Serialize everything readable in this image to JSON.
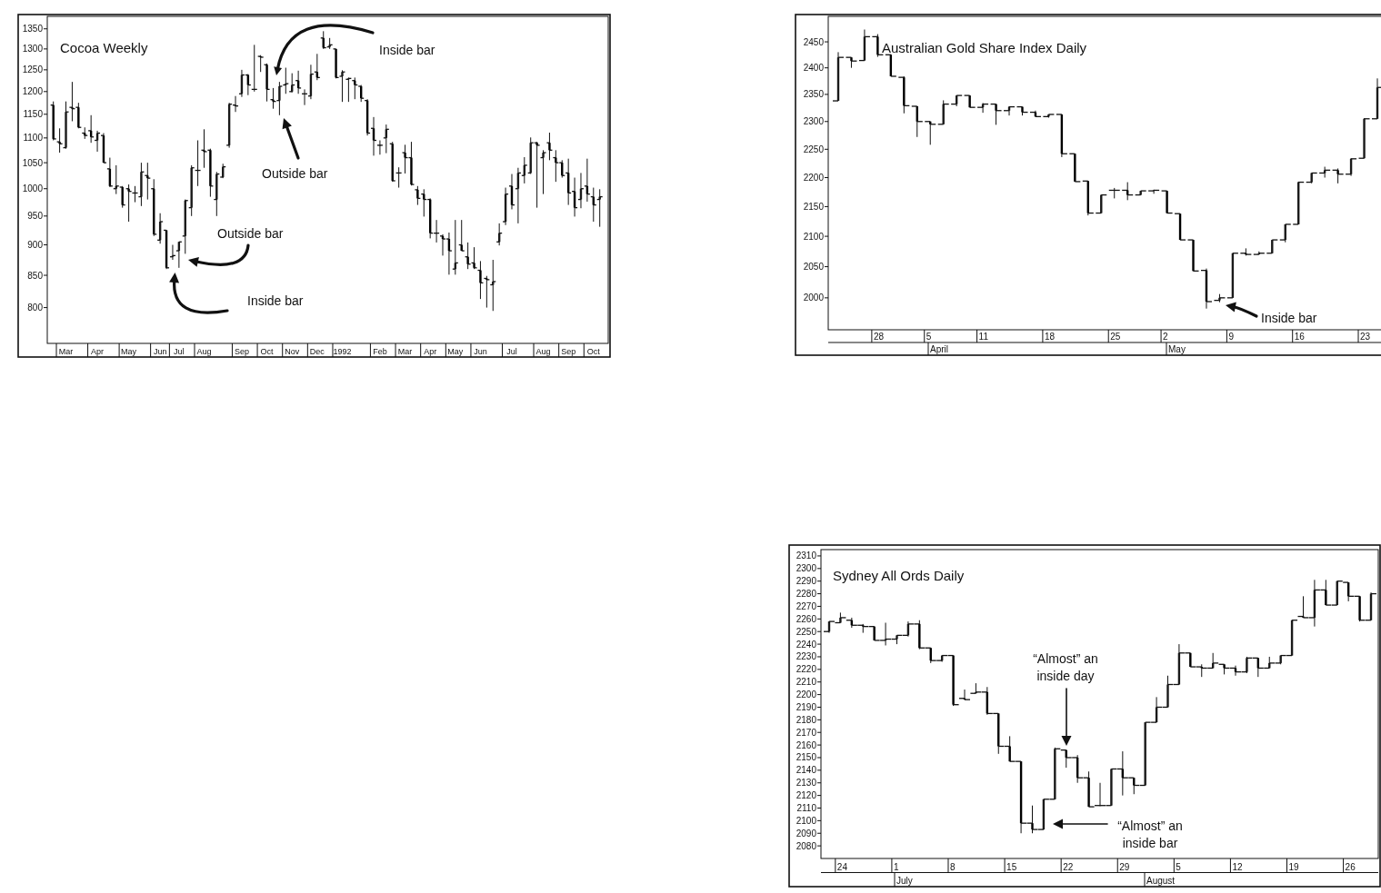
{
  "chart_data": [
    {
      "type": "candlestick",
      "title": "Cocoa Weekly",
      "log": true,
      "ylim": [
        748,
        1382
      ],
      "yticks": [
        800,
        850,
        900,
        950,
        1000,
        1050,
        1100,
        1150,
        1200,
        1250,
        1300,
        1350
      ],
      "categories": [
        null,
        null,
        "Mar",
        null,
        null,
        null,
        null,
        "Apr",
        null,
        null,
        null,
        null,
        "May",
        null,
        null,
        null,
        null,
        "Jun",
        null,
        null,
        "Jul",
        null,
        null,
        null,
        "Aug",
        null,
        null,
        null,
        null,
        null,
        "Sep",
        null,
        null,
        null,
        "Oct",
        null,
        null,
        null,
        "Nov",
        null,
        null,
        null,
        "Dec",
        null,
        null,
        null,
        "1992",
        null,
        null,
        null,
        null,
        null,
        "Feb",
        null,
        null,
        null,
        "Mar",
        null,
        null,
        null,
        "Apr",
        null,
        null,
        null,
        "May",
        null,
        null,
        null,
        "Jun",
        null,
        null,
        null,
        null,
        "Jul",
        null,
        null,
        null,
        null,
        "Aug",
        null,
        null,
        null,
        "Sep",
        null,
        null,
        null,
        "Oct",
        null
      ],
      "ohlc": [
        [
          1170,
          1178,
          1095,
          1098
        ],
        [
          1092,
          1120,
          1070,
          1088
        ],
        [
          1080,
          1178,
          1078,
          1155
        ],
        [
          1165,
          1222,
          1135,
          1162
        ],
        [
          1165,
          1175,
          1120,
          1122
        ],
        [
          1110,
          1122,
          1098,
          1105
        ],
        [
          1115,
          1148,
          1090,
          1102
        ],
        [
          1095,
          1115,
          1072,
          1110
        ],
        [
          1105,
          1110,
          1050,
          1050
        ],
        [
          1038,
          1060,
          1003,
          1005
        ],
        [
          1000,
          1045,
          990,
          1005
        ],
        [
          1003,
          1005,
          965,
          970
        ],
        [
          1000,
          1008,
          940,
          995
        ],
        [
          992,
          1005,
          975,
          992
        ],
        [
          985,
          1050,
          968,
          1032
        ],
        [
          1025,
          1050,
          980,
          1020
        ],
        [
          1000,
          1018,
          915,
          918
        ],
        [
          908,
          955,
          902,
          940
        ],
        [
          925,
          925,
          860,
          862
        ],
        [
          880,
          900,
          875,
          882
        ],
        [
          890,
          905,
          862,
          905
        ],
        [
          915,
          980,
          885,
          978
        ],
        [
          965,
          1045,
          950,
          1040
        ],
        [
          1035,
          1095,
          1005,
          1035
        ],
        [
          1075,
          1118,
          1040,
          1072
        ],
        [
          1075,
          1078,
          985,
          1005
        ],
        [
          980,
          1032,
          950,
          1028
        ],
        [
          1022,
          1048,
          1020,
          1042
        ],
        [
          1085,
          1175,
          1080,
          1172
        ],
        [
          1170,
          1190,
          1155,
          1168
        ],
        [
          1195,
          1250,
          1188,
          1238
        ],
        [
          1238,
          1240,
          1192,
          1215
        ],
        [
          1205,
          1310,
          1200,
          1205
        ],
        [
          1282,
          1285,
          1245,
          1280
        ],
        [
          1262,
          1265,
          1178,
          1205
        ],
        [
          1182,
          1208,
          1162,
          1178
        ],
        [
          1180,
          1222,
          1148,
          1212
        ],
        [
          1215,
          1255,
          1195,
          1218
        ],
        [
          1200,
          1242,
          1198,
          1215
        ],
        [
          1225,
          1248,
          1195,
          1208
        ],
        [
          1195,
          1205,
          1170,
          1195
        ],
        [
          1190,
          1262,
          1183,
          1240
        ],
        [
          1245,
          1288,
          1226,
          1232
        ],
        [
          1327,
          1344,
          1300,
          1303
        ],
        [
          1305,
          1327,
          1300,
          1310
        ],
        [
          1300,
          1300,
          1230,
          1232
        ],
        [
          1235,
          1249,
          1177,
          1245
        ],
        [
          1228,
          1232,
          1177,
          1230
        ],
        [
          1225,
          1232,
          1183,
          1215
        ],
        [
          1212,
          1215,
          1177,
          1185
        ],
        [
          1180,
          1183,
          1105,
          1110
        ],
        [
          1120,
          1144,
          1064,
          1095
        ],
        [
          1085,
          1095,
          1066,
          1085
        ],
        [
          1100,
          1128,
          1069,
          1118
        ],
        [
          1088,
          1092,
          1013,
          1015
        ],
        [
          1030,
          1041,
          1002,
          1030
        ],
        [
          1070,
          1086,
          1029,
          1060
        ],
        [
          1060,
          1092,
          1006,
          1008
        ],
        [
          998,
          1005,
          970,
          982
        ],
        [
          990,
          999,
          949,
          980
        ],
        [
          980,
          982,
          911,
          920
        ],
        [
          920,
          943,
          904,
          920
        ],
        [
          915,
          918,
          882,
          910
        ],
        [
          910,
          921,
          851,
          890
        ],
        [
          860,
          943,
          851,
          870
        ],
        [
          900,
          943,
          890,
          890
        ],
        [
          880,
          904,
          860,
          868
        ],
        [
          870,
          896,
          860,
          862
        ],
        [
          858,
          873,
          813,
          838
        ],
        [
          845,
          849,
          800,
          843
        ],
        [
          835,
          875,
          795,
          840
        ],
        [
          905,
          937,
          899,
          920
        ],
        [
          940,
          1002,
          934,
          990
        ],
        [
          1005,
          1028,
          962,
          970
        ],
        [
          1000,
          1040,
          937,
          1030
        ],
        [
          1025,
          1061,
          1010,
          1045
        ],
        [
          1030,
          1101,
          1028,
          1090
        ],
        [
          1090,
          1092,
          965,
          1085
        ],
        [
          1060,
          1075,
          990,
          1070
        ],
        [
          1090,
          1111,
          1055,
          1075
        ],
        [
          1060,
          1075,
          1013,
          1050
        ],
        [
          1050,
          1055,
          1021,
          1025
        ],
        [
          1030,
          1058,
          970,
          992
        ],
        [
          995,
          1021,
          949,
          965
        ],
        [
          980,
          1030,
          964,
          1000
        ],
        [
          1005,
          1058,
          976,
          990
        ],
        [
          985,
          1002,
          940,
          970
        ],
        [
          980,
          999,
          931,
          985
        ]
      ],
      "annotations": [
        "Inside bar",
        "Outside bar",
        "Outside bar",
        "Inside bar"
      ]
    },
    {
      "type": "candlestick",
      "title": "Australian Gold Share Index Daily",
      "log": true,
      "ylim": [
        1950,
        2500
      ],
      "yticks": [
        2000,
        2050,
        2100,
        2150,
        2200,
        2250,
        2300,
        2350,
        2400,
        2450
      ],
      "categories": [
        null,
        null,
        null,
        "28",
        null,
        null,
        null,
        "5",
        null,
        null,
        null,
        "11",
        null,
        null,
        null,
        null,
        "18",
        null,
        null,
        null,
        null,
        "25",
        null,
        null,
        null,
        "2",
        null,
        null,
        null,
        null,
        "9",
        null,
        null,
        null,
        null,
        "16",
        null,
        null,
        null,
        null,
        "23",
        null
      ],
      "ohlc": [
        [
          2338,
          2430,
          2338,
          2420
        ],
        [
          2420,
          2420,
          2400,
          2413
        ],
        [
          2414,
          2474,
          2414,
          2460
        ],
        [
          2460,
          2465,
          2421,
          2425
        ],
        [
          2425,
          2426,
          2384,
          2384
        ],
        [
          2382,
          2384,
          2315,
          2329
        ],
        [
          2328,
          2328,
          2272,
          2300
        ],
        [
          2300,
          2300,
          2258,
          2295
        ],
        [
          2295,
          2339,
          2295,
          2332
        ],
        [
          2332,
          2348,
          2328,
          2348
        ],
        [
          2348,
          2348,
          2326,
          2326
        ],
        [
          2326,
          2334,
          2316,
          2332
        ],
        [
          2332,
          2332,
          2294,
          2320
        ],
        [
          2320,
          2328,
          2311,
          2327
        ],
        [
          2327,
          2327,
          2311,
          2317
        ],
        [
          2317,
          2320,
          2309,
          2309
        ],
        [
          2309,
          2313,
          2307,
          2313
        ],
        [
          2313,
          2313,
          2236,
          2242
        ],
        [
          2242,
          2242,
          2193,
          2193
        ],
        [
          2194,
          2194,
          2135,
          2139
        ],
        [
          2139,
          2170,
          2139,
          2170
        ],
        [
          2178,
          2182,
          2164,
          2178
        ],
        [
          2178,
          2192,
          2161,
          2170
        ],
        [
          2170,
          2177,
          2170,
          2177
        ],
        [
          2177,
          2179,
          2172,
          2178
        ],
        [
          2177,
          2177,
          2139,
          2139
        ],
        [
          2138,
          2138,
          2094,
          2094
        ],
        [
          2094,
          2094,
          2043,
          2043
        ],
        [
          2044,
          2047,
          1983,
          1994
        ],
        [
          1996,
          2006,
          1993,
          2000
        ],
        [
          2000,
          2072,
          2000,
          2072
        ],
        [
          2072,
          2080,
          2068,
          2070
        ],
        [
          2070,
          2075,
          2070,
          2072
        ],
        [
          2072,
          2094,
          2072,
          2094
        ],
        [
          2094,
          2120,
          2090,
          2120
        ],
        [
          2120,
          2193,
          2120,
          2192
        ],
        [
          2192,
          2208,
          2190,
          2208
        ],
        [
          2208,
          2219,
          2200,
          2213
        ],
        [
          2213,
          2216,
          2190,
          2206
        ],
        [
          2206,
          2234,
          2203,
          2233
        ],
        [
          2234,
          2306,
          2234,
          2305
        ],
        [
          2305,
          2380,
          2305,
          2363
        ]
      ],
      "annotations": [
        "Inside bar",
        "April",
        "May"
      ]
    },
    {
      "type": "candlestick",
      "title": "Sydney All Ords Daily",
      "ylim": [
        2070,
        2315
      ],
      "yticks": [
        2080,
        2090,
        2100,
        2110,
        2120,
        2130,
        2140,
        2150,
        2160,
        2170,
        2180,
        2190,
        2200,
        2210,
        2220,
        2230,
        2240,
        2250,
        2260,
        2270,
        2280,
        2290,
        2300,
        2310
      ],
      "categories": [
        null,
        "24",
        null,
        null,
        null,
        null,
        "1",
        null,
        null,
        null,
        null,
        "8",
        null,
        null,
        null,
        null,
        "15",
        null,
        null,
        null,
        null,
        "22",
        null,
        null,
        null,
        null,
        "29",
        null,
        null,
        null,
        null,
        "5",
        null,
        null,
        null,
        null,
        "12",
        null,
        null,
        null,
        null,
        "19",
        null,
        null,
        null,
        null,
        "26",
        null,
        null
      ],
      "ohlc": [
        [
          2250,
          2258,
          2249,
          2258
        ],
        [
          2257,
          2265,
          2257,
          2261
        ],
        [
          2259,
          2261,
          2253,
          2255
        ],
        [
          2255,
          2256,
          2249,
          2254
        ],
        [
          2254,
          2254,
          2243,
          2243
        ],
        [
          2243,
          2257,
          2239,
          2244
        ],
        [
          2244,
          2247,
          2240,
          2247
        ],
        [
          2247,
          2258,
          2246,
          2256
        ],
        [
          2256,
          2259,
          2236,
          2237
        ],
        [
          2237,
          2237,
          2225,
          2227
        ],
        [
          2227,
          2231,
          2226,
          2231
        ],
        [
          2231,
          2231,
          2191,
          2192
        ],
        [
          2197,
          2204,
          2196,
          2196
        ],
        [
          2201,
          2209,
          2201,
          2202
        ],
        [
          2202,
          2206,
          2184,
          2185
        ],
        [
          2185,
          2185,
          2153,
          2159
        ],
        [
          2159,
          2167,
          2147,
          2147
        ],
        [
          2147,
          2147,
          2090,
          2098
        ],
        [
          2098,
          2112,
          2090,
          2093
        ],
        [
          2093,
          2117,
          2093,
          2117
        ],
        [
          2117,
          2158,
          2117,
          2157
        ],
        [
          2156,
          2156,
          2142,
          2150
        ],
        [
          2150,
          2152,
          2130,
          2134
        ],
        [
          2134,
          2139,
          2111,
          2111
        ],
        [
          2112,
          2130,
          2112,
          2112
        ],
        [
          2112,
          2141,
          2112,
          2141
        ],
        [
          2141,
          2155,
          2120,
          2134
        ],
        [
          2134,
          2134,
          2121,
          2128
        ],
        [
          2128,
          2178,
          2128,
          2178
        ],
        [
          2178,
          2198,
          2178,
          2190
        ],
        [
          2190,
          2215,
          2190,
          2208
        ],
        [
          2208,
          2240,
          2208,
          2233
        ],
        [
          2233,
          2233,
          2222,
          2222
        ],
        [
          2222,
          2224,
          2214,
          2221
        ],
        [
          2221,
          2233,
          2221,
          2225
        ],
        [
          2224,
          2224,
          2216,
          2221
        ],
        [
          2221,
          2223,
          2215,
          2218
        ],
        [
          2218,
          2230,
          2217,
          2229
        ],
        [
          2229,
          2229,
          2214,
          2221
        ],
        [
          2221,
          2230,
          2221,
          2225
        ],
        [
          2225,
          2231,
          2224,
          2231
        ],
        [
          2231,
          2259,
          2231,
          2259
        ],
        [
          2262,
          2278,
          2261,
          2261
        ],
        [
          2261,
          2291,
          2254,
          2283
        ],
        [
          2283,
          2291,
          2271,
          2271
        ],
        [
          2271,
          2290,
          2271,
          2290
        ],
        [
          2289,
          2289,
          2274,
          2278
        ],
        [
          2278,
          2278,
          2258,
          2259
        ],
        [
          2259,
          2281,
          2259,
          2280
        ]
      ],
      "annotations": [
        "“Almost” an inside day",
        "“Almost” an inside bar",
        "July",
        "August"
      ]
    }
  ]
}
